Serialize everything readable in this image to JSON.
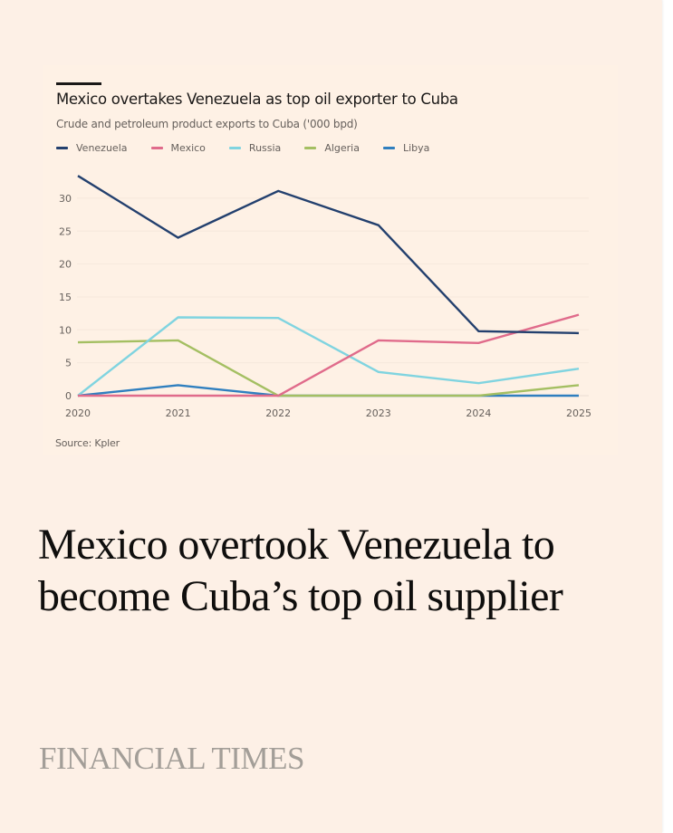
{
  "chart_data": {
    "type": "line",
    "title": "Mexico overtakes Venezuela as top oil exporter to Cuba",
    "subtitle": "Crude and petroleum product exports to Cuba ('000 bpd)",
    "xlabel": "",
    "ylabel": "",
    "x": [
      "2020",
      "2021",
      "2022",
      "2023",
      "2024",
      "2025"
    ],
    "ylim": [
      0,
      33.5
    ],
    "yticks": [
      0,
      5,
      10,
      15,
      20,
      25,
      30
    ],
    "grid": true,
    "legend_position": "top-left",
    "series": [
      {
        "name": "Venezuela",
        "color": "#23406e",
        "values": [
          33.4,
          24.0,
          31.1,
          25.9,
          9.8,
          9.5
        ]
      },
      {
        "name": "Mexico",
        "color": "#e06b8b",
        "values": [
          0,
          0,
          0,
          8.4,
          8.0,
          12.3
        ]
      },
      {
        "name": "Russia",
        "color": "#80d4e0",
        "values": [
          0,
          11.9,
          11.8,
          3.6,
          1.9,
          4.1
        ]
      },
      {
        "name": "Algeria",
        "color": "#a4bf62",
        "values": [
          8.1,
          8.4,
          0,
          0,
          0,
          1.6
        ]
      },
      {
        "name": "Libya",
        "color": "#2f7fbf",
        "values": [
          0,
          1.6,
          0,
          0,
          0,
          0
        ]
      }
    ],
    "source": "Source: Kpler"
  },
  "article": {
    "headline": "Mexico overtook Venezuela to become Cuba’s top oil supplier",
    "publisher": "FINANCIAL TIMES"
  },
  "colors": {
    "background": "#fdf0e6",
    "text": "#0f0e0d",
    "muted": "#66605c",
    "brand": "#a39e98"
  }
}
